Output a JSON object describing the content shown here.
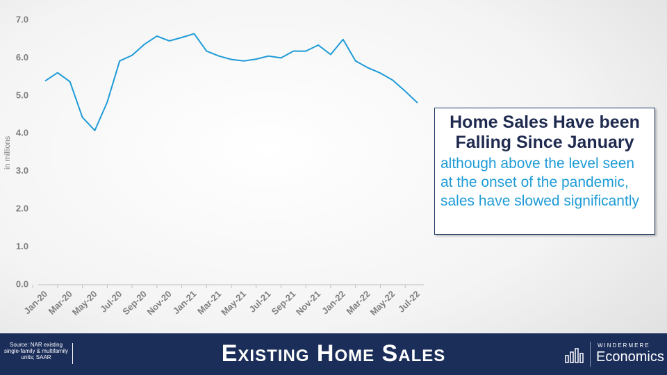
{
  "chart_data": {
    "type": "line",
    "y_label": "in millions",
    "categories": [
      "Jan-20",
      null,
      "Mar-20",
      null,
      "May-20",
      null,
      "Jul-20",
      null,
      "Sep-20",
      null,
      "Nov-20",
      null,
      "Jan-21",
      null,
      "Mar-21",
      null,
      "May-21",
      null,
      "Jul-21",
      null,
      "Sep-21",
      null,
      "Nov-21",
      null,
      "Jan-22",
      null,
      "Mar-22",
      null,
      "May-22",
      null,
      "Jul-22"
    ],
    "series": [
      {
        "name": "Existing home sales",
        "color": "#1e9bd7",
        "values": [
          5.39,
          5.61,
          5.37,
          4.43,
          4.08,
          4.83,
          5.92,
          6.07,
          6.36,
          6.58,
          6.45,
          6.54,
          6.64,
          6.18,
          6.05,
          5.96,
          5.92,
          5.97,
          6.05,
          6.0,
          6.18,
          6.18,
          6.34,
          6.09,
          6.49,
          5.92,
          5.74,
          5.6,
          5.41,
          5.12,
          4.81
        ]
      }
    ],
    "ylim": [
      0,
      7
    ],
    "yticks": [
      {
        "value": 0,
        "label": "0.0"
      },
      {
        "value": 1,
        "label": "1.0"
      },
      {
        "value": 2,
        "label": "2.0"
      },
      {
        "value": 3,
        "label": "3.0"
      },
      {
        "value": 4,
        "label": "4.0"
      },
      {
        "value": 5,
        "label": "5.0"
      },
      {
        "value": 6,
        "label": "6.0"
      },
      {
        "value": 7,
        "label": "7.0"
      }
    ],
    "grid": false,
    "annotation": {
      "title": "Home Sales Have been Falling Since January",
      "text": "although above the level seen at the onset of the pandemic, sales have slowed significantly"
    }
  },
  "footer": {
    "source": "Source: NAR existing single-family & multifamily units; SAAR",
    "title": "Existing Home Sales",
    "brand": "WINDERMERE",
    "brand_sub": "Economics"
  }
}
